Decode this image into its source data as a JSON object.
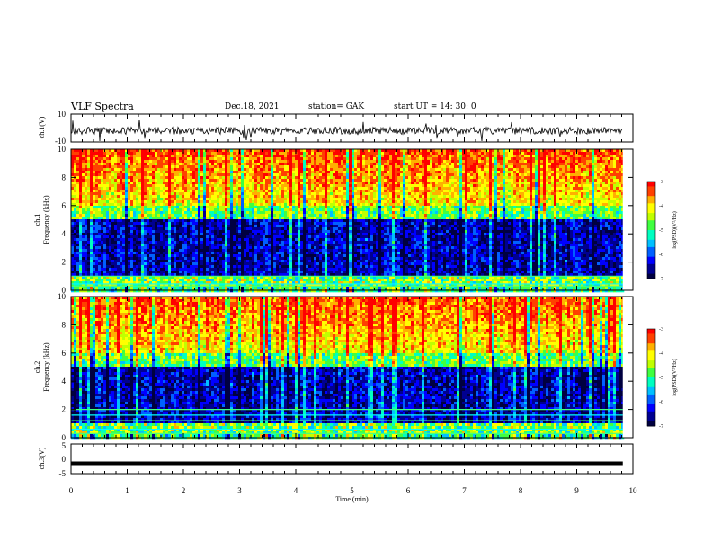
{
  "header": {
    "title": "VLF Spectra",
    "date": "Dec.18, 2021",
    "station": "station= GAK",
    "start": "start  UT =   14: 30: 0"
  },
  "chart_data": [
    {
      "type": "line",
      "panel": "ch1-waveform",
      "ylabel": "ch.1(V)",
      "ytick_labels": [
        "10",
        "-10"
      ],
      "ylim": [
        -10,
        10
      ],
      "xlim": [
        0,
        10
      ],
      "color": "#000000"
    },
    {
      "type": "heatmap",
      "panel": "ch1-spectrogram",
      "ylabel_line1": "ch.1",
      "ylabel_line2": "Frequency  (kHz)",
      "yticks": [
        0,
        2,
        4,
        6,
        8,
        10
      ],
      "ylim": [
        0,
        10
      ],
      "xlim": [
        0,
        10
      ],
      "colorbar": {
        "ticks": [
          -3,
          -4,
          -5,
          -6,
          -7
        ],
        "label": "log(PSD)(V²/Hz)",
        "range": [
          -7,
          -3
        ]
      }
    },
    {
      "type": "heatmap",
      "panel": "ch2-spectrogram",
      "ylabel_line1": "ch.2",
      "ylabel_line2": "Frequency  (kHz)",
      "yticks": [
        0,
        2,
        4,
        6,
        8,
        10
      ],
      "ylim": [
        0,
        10
      ],
      "xlim": [
        0,
        10
      ],
      "colorbar": {
        "ticks": [
          -3,
          -4,
          -5,
          -6,
          -7
        ],
        "label": "log(PSD)(V²/Hz)",
        "range": [
          -7,
          -3
        ]
      }
    },
    {
      "type": "line",
      "panel": "ch3-waveform",
      "ylabel": "ch.3(V)",
      "ytick_labels": [
        "5",
        "0",
        "-5"
      ],
      "ylim": [
        -5,
        5
      ],
      "xlim": [
        0,
        10
      ],
      "series": [
        {
          "x": [
            0,
            9.82
          ],
          "y": [
            -1.5,
            -1.5
          ]
        }
      ],
      "color": "#000000"
    }
  ],
  "xaxis": {
    "label": "Time  (min)",
    "ticks": [
      0,
      1,
      2,
      3,
      4,
      5,
      6,
      7,
      8,
      9,
      10
    ],
    "data_end": 9.82
  },
  "colormap": [
    "#000080",
    "#0000ff",
    "#00a0ff",
    "#00ffff",
    "#00ff80",
    "#80ff00",
    "#ffff00",
    "#ffa000",
    "#ff0000",
    "#ffffff"
  ]
}
